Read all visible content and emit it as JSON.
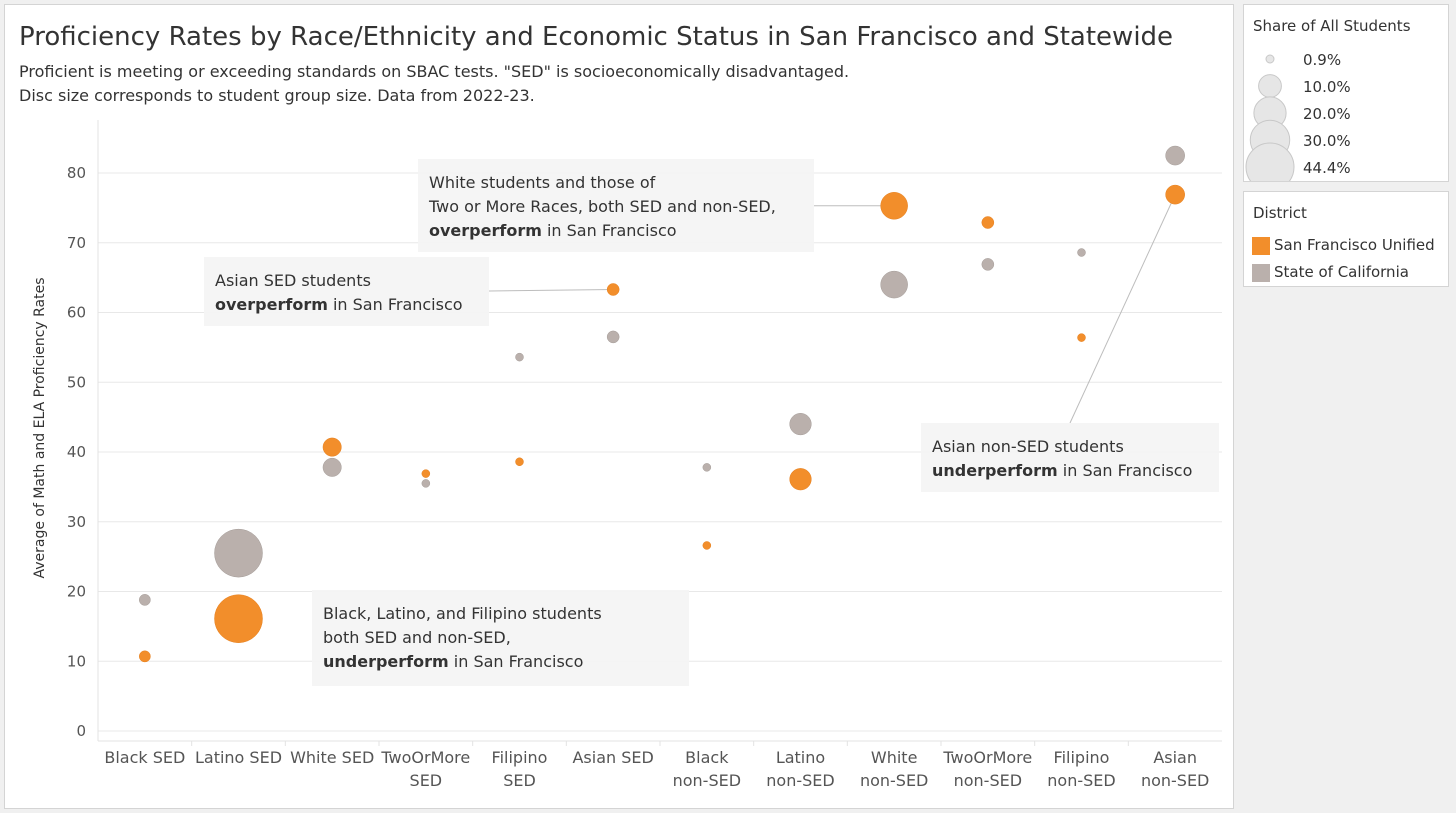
{
  "chart_data": {
    "type": "scatter",
    "title": "Proficiency Rates by Race/Ethnicity and Economic Status in San Francisco and Statewide",
    "subtitle_lines": [
      "Proficient is meeting or exceeding standards on SBAC tests. \"SED\" is socioeconomically disadvantaged.",
      "Disc size corresponds to student group size. Data from 2022-23."
    ],
    "ylabel": "Average of Math and ELA Proficiency Rates",
    "xlabel": "",
    "ylim": [
      0,
      87
    ],
    "yticks": [
      0,
      10,
      20,
      30,
      40,
      50,
      60,
      70,
      80
    ],
    "grid": true,
    "categories": [
      [
        "Black SED"
      ],
      [
        "Latino SED"
      ],
      [
        "White SED"
      ],
      [
        "TwoOrMore",
        "SED"
      ],
      [
        "Filipino",
        "SED"
      ],
      [
        "Asian SED"
      ],
      [
        "Black",
        "non-SED"
      ],
      [
        "Latino",
        "non-SED"
      ],
      [
        "White",
        "non-SED"
      ],
      [
        "TwoOrMore",
        "non-SED"
      ],
      [
        "Filipino",
        "non-SED"
      ],
      [
        "Asian",
        "non-SED"
      ]
    ],
    "size_encoding": "Share of All Students",
    "series": [
      {
        "name": "State of California",
        "color": "#bab0ac",
        "values": [
          18.8,
          25.5,
          37.8,
          35.5,
          53.6,
          56.5,
          37.8,
          44.0,
          64.0,
          66.9,
          68.6,
          82.5
        ],
        "share": [
          2.4,
          44.4,
          6.5,
          1.0,
          0.4,
          2.8,
          0.5,
          9.0,
          14.0,
          2.8,
          0.8,
          7.0
        ]
      },
      {
        "name": "San Francisco Unified",
        "color": "#f28e2b",
        "values": [
          10.7,
          16.1,
          40.7,
          36.9,
          38.6,
          63.3,
          26.6,
          36.1,
          75.3,
          72.9,
          56.4,
          76.9
        ]
      }
    ],
    "annotations": [
      {
        "lines": [
          [
            {
              "t": "White students and those of",
              "b": false
            }
          ],
          [
            {
              "t": "Two or More Races, both SED and non-SED,",
              "b": false
            }
          ],
          [
            {
              "t": "overperform",
              "b": true
            },
            {
              "t": " in San Francisco",
              "b": false
            }
          ]
        ]
      },
      {
        "lines": [
          [
            {
              "t": "Asian SED students",
              "b": false
            }
          ],
          [
            {
              "t": "overperform",
              "b": true
            },
            {
              "t": " in San Francisco",
              "b": false
            }
          ]
        ]
      },
      {
        "lines": [
          [
            {
              "t": "Black, Latino, and Filipino students",
              "b": false
            }
          ],
          [
            {
              "t": "both SED and non-SED,",
              "b": false
            }
          ],
          [
            {
              "t": "underperform",
              "b": true
            },
            {
              "t": " in San Francisco",
              "b": false
            }
          ]
        ]
      },
      {
        "lines": [
          [
            {
              "t": "Asian non-SED students",
              "b": false
            }
          ],
          [
            {
              "t": "underperform",
              "b": true
            },
            {
              "t": " in San Francisco",
              "b": false
            }
          ]
        ]
      }
    ]
  },
  "legends": {
    "size": {
      "title": "Share of All Students",
      "entries": [
        {
          "label": "0.9%",
          "share": 0.9
        },
        {
          "label": "10.0%",
          "share": 10.0
        },
        {
          "label": "20.0%",
          "share": 20.0
        },
        {
          "label": "30.0%",
          "share": 30.0
        },
        {
          "label": "44.4%",
          "share": 44.4
        }
      ]
    },
    "color": {
      "title": "District",
      "entries": [
        {
          "label": "San Francisco Unified",
          "color": "#f28e2b"
        },
        {
          "label": "State of California",
          "color": "#bab0ac"
        }
      ]
    }
  }
}
